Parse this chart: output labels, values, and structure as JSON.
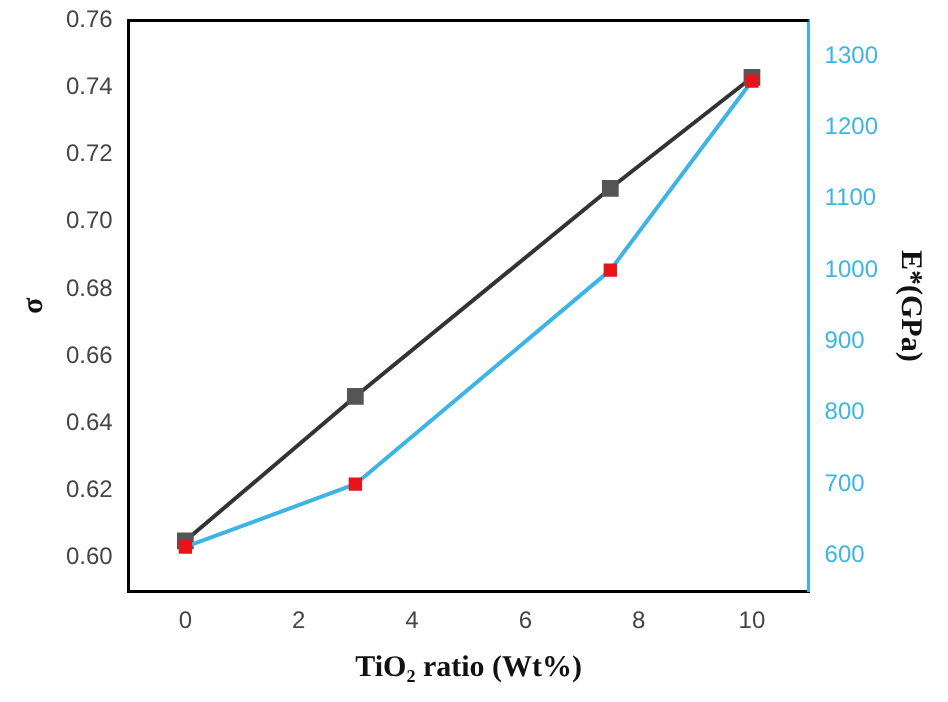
{
  "chart_data": {
    "type": "line",
    "xlabel": "TiO₂ ratio (Wt%)",
    "ylabel": "σ",
    "y2label": "E*(GPa)",
    "x": [
      0,
      3,
      7.5,
      10
    ],
    "series": [
      {
        "color": "#333333",
        "colors": [
          "#555555",
          "#555555",
          "#555555",
          "#555555"
        ],
        "values": [
          0.605,
          0.648,
          0.71,
          0.743
        ]
      },
      {
        "color": "#3cb4e5",
        "colors": [
          "#e8141c",
          "#e8141c",
          "#e8141c",
          "#e8141c"
        ],
        "values": [
          612,
          700,
          1000,
          1265
        ],
        "axis": "y2"
      }
    ],
    "xlim": [
      -1,
      11
    ],
    "xticks": [
      0,
      2,
      4,
      6,
      8,
      10
    ],
    "ylim": [
      0.59,
      0.76
    ],
    "yticks": [
      {
        "value": 0.6,
        "label": "0.60"
      },
      0.62,
      0.64,
      0.66,
      0.68,
      {
        "value": 0.7,
        "label": "0.70"
      },
      0.72,
      0.74,
      0.76
    ],
    "y2lim": [
      550,
      1350
    ],
    "y2ticks": [
      600,
      700,
      800,
      900,
      1000,
      1100,
      1200,
      1300
    ],
    "marker": "square",
    "grid": false,
    "legend": false
  }
}
